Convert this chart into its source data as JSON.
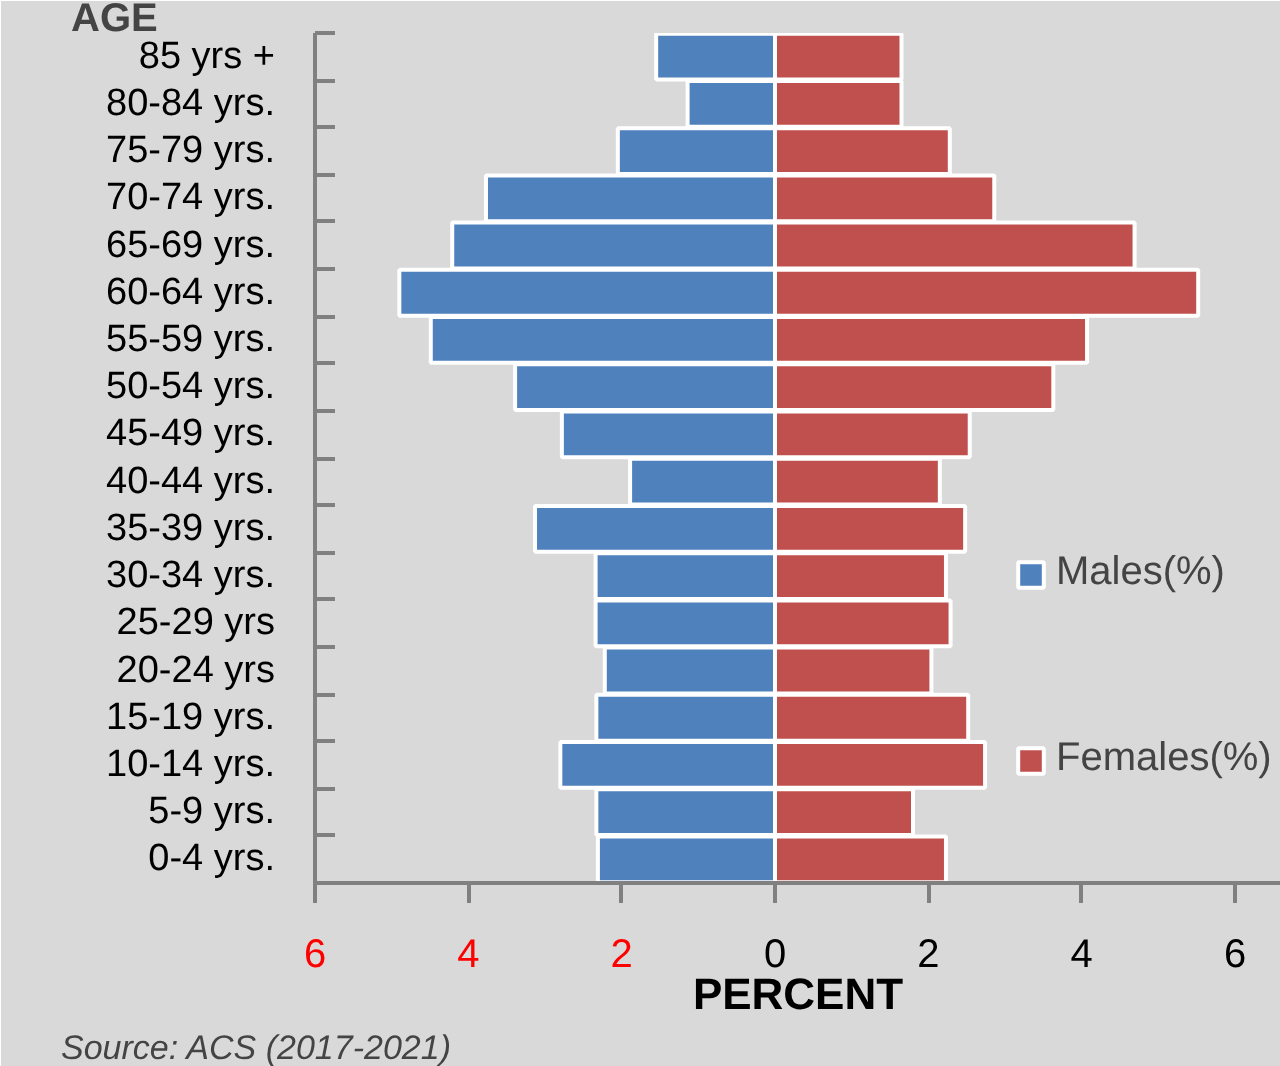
{
  "chart_data": {
    "type": "bar",
    "orientation": "horizontal",
    "ylabel": "AGE",
    "xlabel": "PERCENT",
    "categories": [
      "85 yrs +",
      "80-84 yrs.",
      "75-79 yrs.",
      "70-74 yrs.",
      "65-69 yrs.",
      "60-64 yrs.",
      "55-59 yrs.",
      "50-54 yrs.",
      "45-49 yrs.",
      "40-44 yrs.",
      "35-39 yrs.",
      "30-34 yrs.",
      "25-29 yrs",
      "20-24 yrs",
      "15-19 yrs.",
      "10-14 yrs.",
      "5-9 yrs.",
      "0-4 yrs."
    ],
    "series": [
      {
        "name": "Males(%)",
        "color": "#4f81bd",
        "values": [
          -1.55,
          -1.14,
          -2.05,
          -3.77,
          -4.21,
          -4.9,
          -4.49,
          -3.39,
          -2.78,
          -1.89,
          -3.13,
          -2.34,
          -2.34,
          -2.22,
          -2.33,
          -2.8,
          -2.33,
          -2.31
        ]
      },
      {
        "name": "Females(%)",
        "color": "#c0504d",
        "values": [
          1.65,
          1.65,
          2.28,
          2.86,
          4.69,
          5.52,
          4.07,
          3.63,
          2.54,
          2.15,
          2.48,
          2.23,
          2.29,
          2.04,
          2.52,
          2.74,
          1.8,
          2.23
        ]
      }
    ],
    "xlim": [
      -6,
      6.6
    ],
    "xticks": [
      {
        "value": -6,
        "label": "6"
      },
      {
        "value": -4,
        "label": "4"
      },
      {
        "value": -2,
        "label": "2"
      },
      0,
      2,
      4,
      6
    ],
    "grid": false,
    "legend": "right",
    "stacked": true,
    "annotations": [
      "Source: ACS (2017-2021)"
    ]
  }
}
